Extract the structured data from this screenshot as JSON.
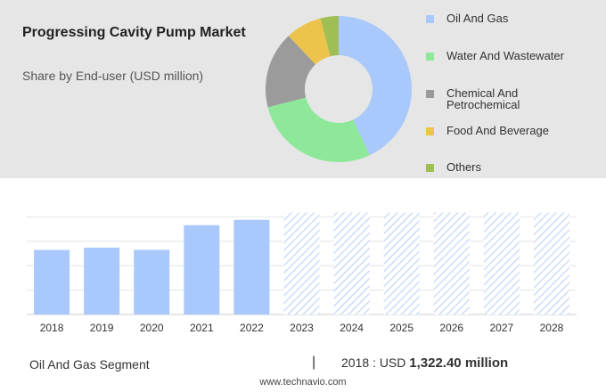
{
  "header": {
    "title": "Progressing Cavity Pump Market",
    "subtitle": "Share by End-user (USD million)"
  },
  "legend": {
    "items": [
      {
        "label": "Oil And Gas",
        "color": "#a9c8fb"
      },
      {
        "label": "Water And Wastewater",
        "color": "#8de89a"
      },
      {
        "label": "Chemical And Petrochemical",
        "color": "#9b9b9b"
      },
      {
        "label": "Food And Beverage",
        "color": "#ecc44b"
      },
      {
        "label": "Others",
        "color": "#9fbf55"
      }
    ]
  },
  "footer_info": {
    "segment": "Oil And Gas Segment",
    "separator": "|",
    "year_label": "2018 : USD ",
    "value_label": "1,322.40 million"
  },
  "source": "www.technavio.com",
  "chart_data": [
    {
      "type": "pie",
      "style": "donut",
      "labels": [
        "Oil And Gas",
        "Water And Wastewater",
        "Chemical And Petrochemical",
        "Food And Beverage",
        "Others"
      ],
      "values": [
        43,
        28,
        17,
        8,
        4
      ],
      "colors": [
        "#a9c8fb",
        "#8de89a",
        "#9b9b9b",
        "#ecc44b",
        "#9fbf55"
      ]
    },
    {
      "type": "bar",
      "categories": [
        "2018",
        "2019",
        "2020",
        "2021",
        "2022",
        "2023",
        "2024",
        "2025",
        "2026",
        "2027",
        "2028"
      ],
      "values": [
        1322.4,
        1370,
        1325,
        1830,
        1940,
        null,
        null,
        null,
        null,
        null,
        null
      ],
      "forecast_categories": [
        "2023",
        "2024",
        "2025",
        "2026",
        "2027",
        "2028"
      ],
      "ylim": [
        0,
        2300
      ],
      "grid": true,
      "bar_color": "#a9c8fb",
      "forecast_style": "hatched"
    }
  ]
}
